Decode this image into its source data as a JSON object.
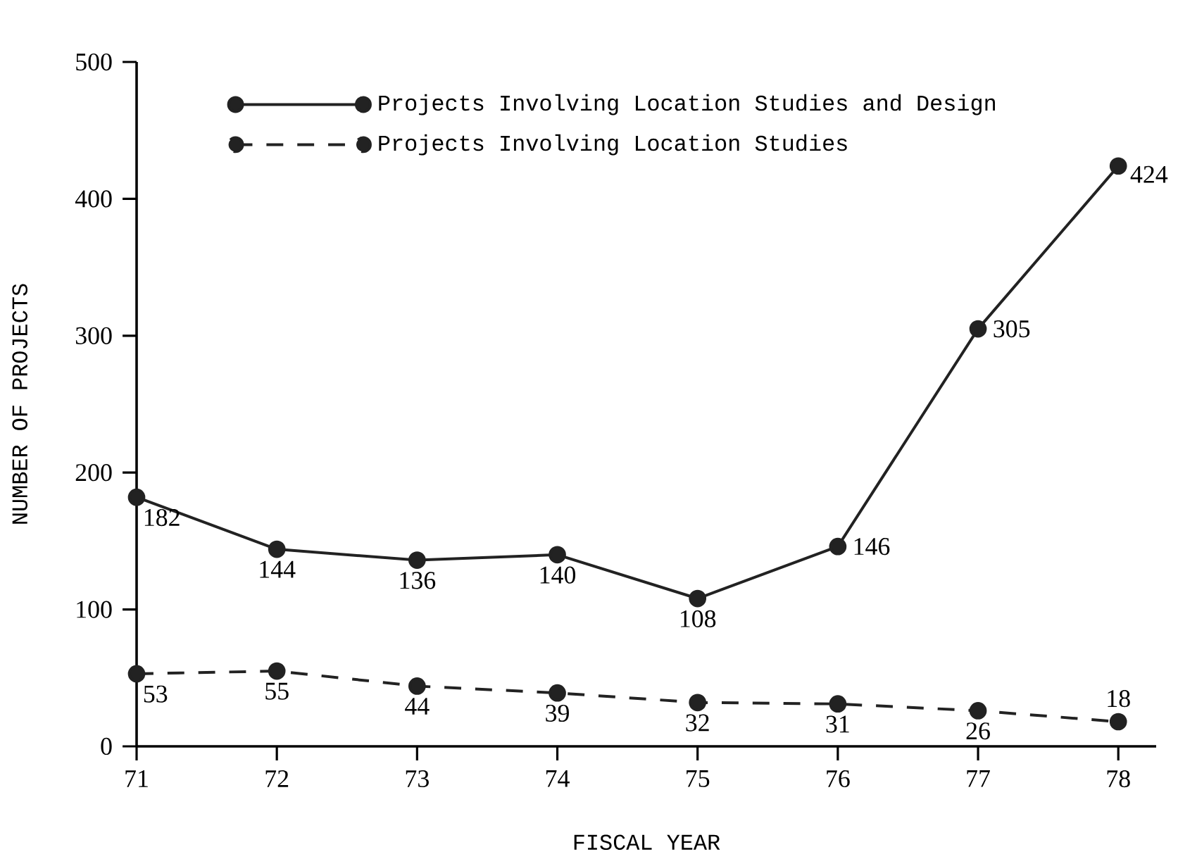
{
  "chart_data": {
    "type": "line",
    "xlabel": "FISCAL YEAR",
    "ylabel": "NUMBER OF PROJECTS",
    "x": [
      71,
      72,
      73,
      74,
      75,
      76,
      77,
      78
    ],
    "xlim": [
      71,
      78.27
    ],
    "xticks": [
      71,
      72,
      73,
      74,
      75,
      76,
      77,
      78
    ],
    "ylim": [
      0,
      500
    ],
    "yticks": [
      0,
      100,
      200,
      300,
      400,
      500
    ],
    "legend": "top left",
    "marker": "circle",
    "grid": false,
    "series": [
      {
        "name": "Projects Involving Location Studies and Design",
        "color": "#222222",
        "line_style": "solid",
        "values": [
          182,
          144,
          136,
          140,
          108,
          146,
          305,
          424
        ],
        "value_labels": [
          "182",
          "144",
          "136",
          "140",
          "108",
          "146",
          "305",
          "424"
        ]
      },
      {
        "name": "Projects Involving Location Studies",
        "color": "#222222",
        "line_style": "dashed",
        "values": [
          53,
          55,
          44,
          39,
          32,
          31,
          26,
          18
        ],
        "value_labels": [
          "53",
          "55",
          "44",
          "39",
          "32",
          "31",
          "26",
          "18"
        ]
      }
    ]
  }
}
